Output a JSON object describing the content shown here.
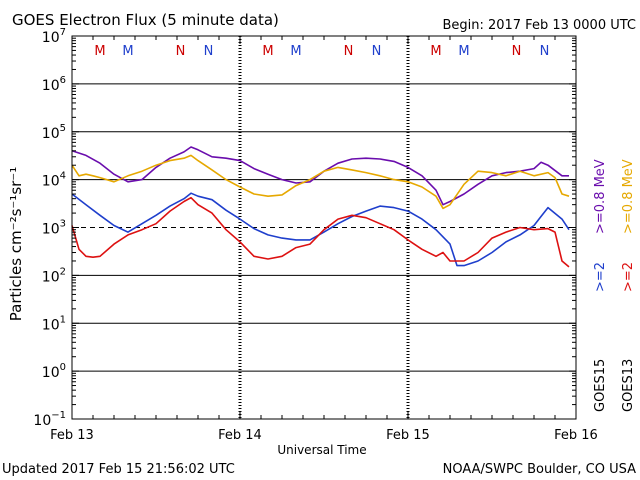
{
  "chart_data": {
    "type": "line",
    "title": "GOES Electron Flux (5 minute data)",
    "begin_label": "Begin: 2017 Feb 13 0000 UTC",
    "xlabel": "Universal Time",
    "ylabel": "Particles cm⁻²s⁻¹sr⁻¹",
    "y_scale": "log",
    "ylim": [
      0.1,
      10000000
    ],
    "y_ticks": [
      {
        "value": 10000000,
        "base": "10",
        "exp": "7"
      },
      {
        "value": 1000000,
        "base": "10",
        "exp": "6"
      },
      {
        "value": 100000,
        "base": "10",
        "exp": "5"
      },
      {
        "value": 10000,
        "base": "10",
        "exp": "4"
      },
      {
        "value": 1000,
        "base": "10",
        "exp": "3"
      },
      {
        "value": 100,
        "base": "10",
        "exp": "2"
      },
      {
        "value": 10,
        "base": "10",
        "exp": "1"
      },
      {
        "value": 1,
        "base": "10",
        "exp": "0"
      },
      {
        "value": 0.1,
        "base": "10",
        "exp": "−1"
      }
    ],
    "xlim": [
      0,
      72
    ],
    "x_unit": "hours since 2017-02-13 00:00 UTC",
    "x_ticks": [
      {
        "value": 0,
        "label": "Feb 13"
      },
      {
        "value": 24,
        "label": "Feb 14"
      },
      {
        "value": 48,
        "label": "Feb 15"
      },
      {
        "value": 72,
        "label": "Feb 16"
      }
    ],
    "threshold": {
      "value": 1000,
      "style": "dashed"
    },
    "mn_markers": [
      {
        "hour": 4.0,
        "label": "M",
        "color": "#cc0000"
      },
      {
        "hour": 8.0,
        "label": "M",
        "color": "#1f3fcc"
      },
      {
        "hour": 15.5,
        "label": "N",
        "color": "#cc0000"
      },
      {
        "hour": 19.5,
        "label": "N",
        "color": "#1f3fcc"
      },
      {
        "hour": 28.0,
        "label": "M",
        "color": "#cc0000"
      },
      {
        "hour": 32.0,
        "label": "M",
        "color": "#1f3fcc"
      },
      {
        "hour": 39.5,
        "label": "N",
        "color": "#cc0000"
      },
      {
        "hour": 43.5,
        "label": "N",
        "color": "#1f3fcc"
      },
      {
        "hour": 52.0,
        "label": "M",
        "color": "#cc0000"
      },
      {
        "hour": 56.0,
        "label": "M",
        "color": "#1f3fcc"
      },
      {
        "hour": 63.5,
        "label": "N",
        "color": "#cc0000"
      },
      {
        "hour": 67.5,
        "label": "N",
        "color": "#1f3fcc"
      }
    ],
    "legend": {
      "GOES15": "GOES15",
      "GOES13": "GOES13",
      "ge2_goes15": ">=2",
      "ge08_goes15": ">=0.8 MeV",
      "ge2_goes13": ">=2",
      "ge08_goes13": ">=0.8 MeV"
    },
    "series": [
      {
        "name": "GOES15 >=0.8 MeV",
        "color": "#6a0dad",
        "x": [
          0,
          2,
          4,
          6,
          8,
          10,
          12,
          14,
          16,
          17,
          18,
          20,
          22,
          24,
          26,
          28,
          30,
          32,
          34,
          36,
          38,
          40,
          42,
          44,
          46,
          48,
          50,
          52,
          53,
          54,
          56,
          58,
          60,
          62,
          64,
          66,
          67,
          68,
          70,
          71
        ],
        "y": [
          40000,
          32000,
          22000,
          13000,
          9000,
          10000,
          18000,
          28000,
          38000,
          48000,
          42000,
          30000,
          28000,
          25000,
          17000,
          13000,
          10000,
          8500,
          9000,
          15000,
          22000,
          27000,
          28000,
          27000,
          24000,
          18000,
          12000,
          6000,
          3000,
          3500,
          5000,
          8000,
          12000,
          14000,
          15000,
          17000,
          23000,
          20000,
          12000,
          12000
        ]
      },
      {
        "name": "GOES13 >=0.8 MeV",
        "color": "#e6a800",
        "x": [
          0,
          1,
          2,
          3,
          4,
          6,
          8,
          10,
          12,
          14,
          16,
          17,
          18,
          20,
          22,
          24,
          26,
          28,
          30,
          32,
          34,
          36,
          38,
          40,
          42,
          44,
          46,
          48,
          50,
          52,
          53,
          54,
          56,
          58,
          60,
          62,
          64,
          66,
          68,
          69,
          70,
          71
        ],
        "y": [
          20000,
          12000,
          13000,
          12000,
          11000,
          9000,
          12000,
          15000,
          20000,
          25000,
          28000,
          32000,
          25000,
          16000,
          10000,
          7000,
          5000,
          4500,
          4800,
          7500,
          10000,
          15000,
          18000,
          16000,
          14000,
          12000,
          10000,
          9000,
          7000,
          4500,
          2500,
          3000,
          8000,
          15000,
          14000,
          12000,
          15000,
          12000,
          14000,
          11000,
          5000,
          4500
        ]
      },
      {
        "name": "GOES15 >=2 MeV",
        "color": "#1f3fcc",
        "x": [
          0,
          2,
          4,
          6,
          8,
          10,
          12,
          14,
          16,
          17,
          18,
          20,
          22,
          24,
          26,
          28,
          30,
          32,
          34,
          36,
          38,
          40,
          42,
          44,
          46,
          48,
          50,
          52,
          54,
          55,
          56,
          58,
          60,
          62,
          64,
          66,
          67,
          68,
          70,
          71
        ],
        "y": [
          5000,
          3000,
          1800,
          1100,
          800,
          1200,
          1800,
          2800,
          4000,
          5200,
          4500,
          3800,
          2300,
          1500,
          950,
          700,
          600,
          550,
          550,
          800,
          1200,
          1700,
          2200,
          2800,
          2600,
          2200,
          1500,
          900,
          450,
          160,
          160,
          200,
          300,
          500,
          700,
          1100,
          1700,
          2600,
          1500,
          900
        ]
      },
      {
        "name": "GOES13 >=2 MeV",
        "color": "#dd1111",
        "x": [
          0,
          1,
          2,
          3,
          4,
          6,
          8,
          10,
          12,
          14,
          16,
          17,
          18,
          20,
          22,
          24,
          26,
          28,
          30,
          32,
          34,
          36,
          38,
          40,
          42,
          44,
          46,
          48,
          50,
          52,
          53,
          54,
          56,
          58,
          60,
          62,
          64,
          66,
          68,
          69,
          70,
          71
        ],
        "y": [
          1100,
          350,
          250,
          240,
          250,
          450,
          700,
          900,
          1200,
          2200,
          3500,
          4200,
          3000,
          2000,
          900,
          500,
          250,
          220,
          250,
          380,
          450,
          900,
          1500,
          1800,
          1600,
          1200,
          900,
          550,
          350,
          250,
          300,
          200,
          200,
          300,
          600,
          800,
          1000,
          900,
          950,
          800,
          200,
          150
        ]
      }
    ]
  },
  "footer": {
    "updated": "Updated 2017 Feb 15 21:56:02 UTC",
    "credit": "NOAA/SWPC Boulder, CO USA"
  }
}
